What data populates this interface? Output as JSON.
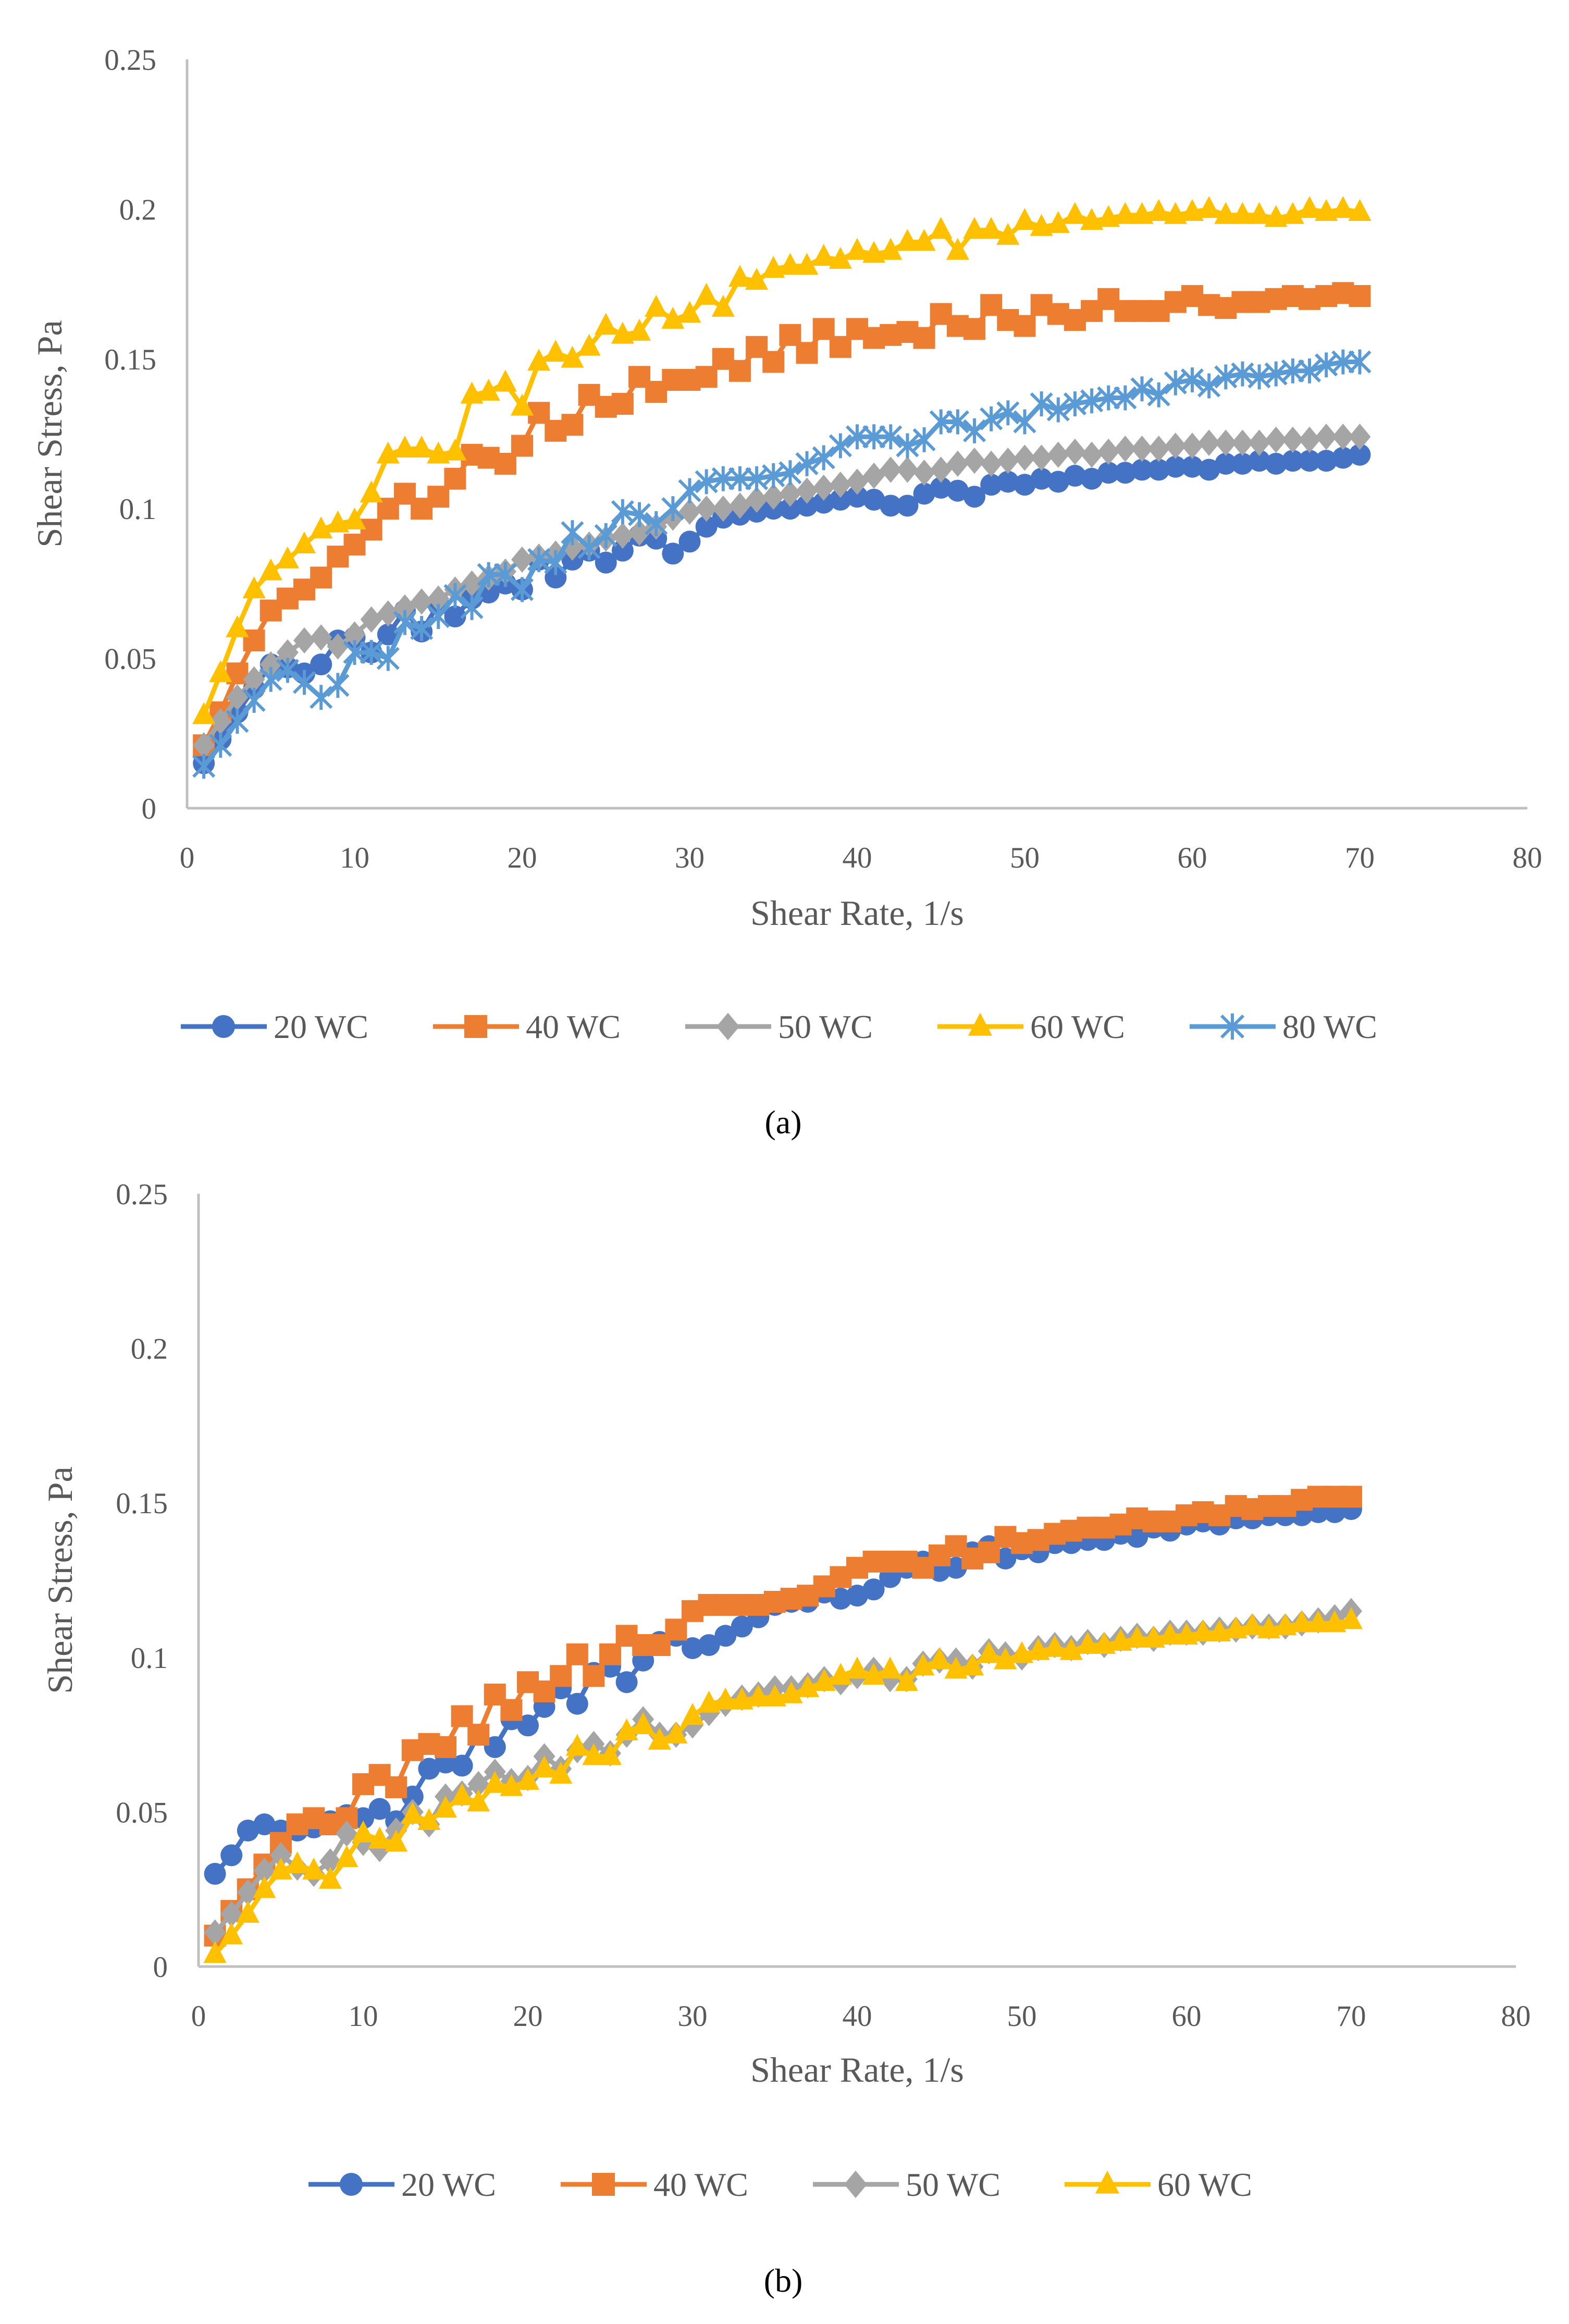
{
  "chart_data": [
    {
      "type": "line",
      "caption": "(a)",
      "xlabel": "Shear Rate, 1/s",
      "ylabel": "Shear Stress, Pa",
      "xlim": [
        0,
        80
      ],
      "ylim": [
        0,
        0.25
      ],
      "xticks": [
        "0",
        "10",
        "20",
        "30",
        "40",
        "50",
        "60",
        "70",
        "80"
      ],
      "yticks": [
        "0",
        "0.05",
        "0.1",
        "0.15",
        "0.2",
        "0.25"
      ],
      "grid": false,
      "legend_position": "bottom",
      "x": [
        1,
        2,
        3,
        4,
        5,
        6,
        7,
        8,
        9,
        10,
        11,
        12,
        13,
        14,
        15,
        16,
        17,
        18,
        19,
        20,
        21,
        22,
        23,
        24,
        25,
        26,
        27,
        28,
        29,
        30,
        31,
        32,
        33,
        34,
        35,
        36,
        37,
        38,
        39,
        40,
        41,
        42,
        43,
        44,
        45,
        46,
        47,
        48,
        49,
        50,
        51,
        52,
        53,
        54,
        55,
        56,
        57,
        58,
        59,
        60,
        61,
        62,
        63,
        64,
        65,
        66,
        67,
        68,
        69,
        70
      ],
      "series": [
        {
          "name": "20 WC",
          "color": "#4472C4",
          "marker": "circle",
          "values": [
            0.015,
            0.023,
            0.032,
            0.04,
            0.048,
            0.047,
            0.045,
            0.048,
            0.056,
            0.057,
            0.052,
            0.058,
            0.066,
            0.059,
            0.068,
            0.064,
            0.07,
            0.072,
            0.075,
            0.073,
            0.083,
            0.077,
            0.083,
            0.086,
            0.082,
            0.086,
            0.091,
            0.09,
            0.085,
            0.089,
            0.094,
            0.097,
            0.098,
            0.099,
            0.1,
            0.1,
            0.101,
            0.102,
            0.103,
            0.104,
            0.103,
            0.101,
            0.101,
            0.105,
            0.107,
            0.106,
            0.104,
            0.108,
            0.109,
            0.108,
            0.11,
            0.109,
            0.111,
            0.11,
            0.112,
            0.112,
            0.113,
            0.113,
            0.114,
            0.114,
            0.113,
            0.115,
            0.115,
            0.116,
            0.115,
            0.116,
            0.116,
            0.116,
            0.117,
            0.118
          ]
        },
        {
          "name": "40 WC",
          "color": "#ED7D31",
          "marker": "square",
          "values": [
            0.021,
            0.032,
            0.045,
            0.056,
            0.066,
            0.07,
            0.073,
            0.077,
            0.084,
            0.088,
            0.093,
            0.1,
            0.105,
            0.1,
            0.104,
            0.11,
            0.118,
            0.117,
            0.115,
            0.121,
            0.132,
            0.126,
            0.128,
            0.138,
            0.134,
            0.135,
            0.144,
            0.139,
            0.143,
            0.143,
            0.144,
            0.15,
            0.146,
            0.154,
            0.149,
            0.158,
            0.152,
            0.16,
            0.154,
            0.16,
            0.157,
            0.158,
            0.159,
            0.157,
            0.165,
            0.161,
            0.16,
            0.168,
            0.163,
            0.161,
            0.168,
            0.165,
            0.163,
            0.166,
            0.17,
            0.166,
            0.166,
            0.166,
            0.169,
            0.171,
            0.168,
            0.167,
            0.169,
            0.169,
            0.17,
            0.171,
            0.17,
            0.171,
            0.172,
            0.171
          ]
        },
        {
          "name": "50 WC",
          "color": "#A5A5A5",
          "marker": "diamond",
          "values": [
            0.021,
            0.029,
            0.037,
            0.043,
            0.048,
            0.052,
            0.056,
            0.057,
            0.054,
            0.058,
            0.063,
            0.065,
            0.067,
            0.069,
            0.07,
            0.073,
            0.075,
            0.077,
            0.079,
            0.083,
            0.084,
            0.085,
            0.087,
            0.088,
            0.09,
            0.091,
            0.092,
            0.094,
            0.097,
            0.099,
            0.1,
            0.1,
            0.101,
            0.103,
            0.104,
            0.105,
            0.106,
            0.107,
            0.108,
            0.109,
            0.111,
            0.113,
            0.113,
            0.112,
            0.113,
            0.115,
            0.116,
            0.115,
            0.116,
            0.117,
            0.117,
            0.118,
            0.119,
            0.118,
            0.119,
            0.12,
            0.12,
            0.12,
            0.121,
            0.121,
            0.122,
            0.122,
            0.122,
            0.122,
            0.123,
            0.123,
            0.123,
            0.124,
            0.124,
            0.124
          ]
        },
        {
          "name": "60 WC",
          "color": "#FFC000",
          "marker": "triangle",
          "values": [
            0.031,
            0.045,
            0.06,
            0.073,
            0.079,
            0.083,
            0.088,
            0.093,
            0.095,
            0.096,
            0.105,
            0.118,
            0.12,
            0.12,
            0.118,
            0.119,
            0.138,
            0.139,
            0.142,
            0.134,
            0.149,
            0.152,
            0.15,
            0.154,
            0.161,
            0.158,
            0.159,
            0.167,
            0.163,
            0.165,
            0.171,
            0.167,
            0.177,
            0.176,
            0.18,
            0.181,
            0.181,
            0.184,
            0.183,
            0.186,
            0.185,
            0.186,
            0.189,
            0.189,
            0.193,
            0.186,
            0.193,
            0.193,
            0.191,
            0.196,
            0.194,
            0.195,
            0.198,
            0.196,
            0.197,
            0.198,
            0.198,
            0.199,
            0.198,
            0.199,
            0.2,
            0.198,
            0.198,
            0.198,
            0.197,
            0.198,
            0.2,
            0.199,
            0.2,
            0.199
          ]
        },
        {
          "name": "80 WC",
          "color": "#5B9BD5",
          "marker": "asterisk",
          "values": [
            0.014,
            0.021,
            0.029,
            0.036,
            0.043,
            0.046,
            0.042,
            0.037,
            0.041,
            0.052,
            0.052,
            0.05,
            0.062,
            0.06,
            0.064,
            0.071,
            0.067,
            0.078,
            0.078,
            0.073,
            0.083,
            0.082,
            0.092,
            0.087,
            0.091,
            0.099,
            0.098,
            0.095,
            0.1,
            0.106,
            0.109,
            0.11,
            0.11,
            0.11,
            0.111,
            0.112,
            0.115,
            0.117,
            0.121,
            0.124,
            0.124,
            0.124,
            0.121,
            0.123,
            0.129,
            0.129,
            0.126,
            0.13,
            0.132,
            0.129,
            0.135,
            0.133,
            0.135,
            0.136,
            0.137,
            0.137,
            0.14,
            0.138,
            0.142,
            0.143,
            0.141,
            0.144,
            0.145,
            0.144,
            0.145,
            0.146,
            0.146,
            0.148,
            0.149,
            0.149
          ]
        }
      ]
    },
    {
      "type": "line",
      "caption": "(b)",
      "xlabel": "Shear Rate, 1/s",
      "ylabel": "Shear Stress, Pa",
      "xlim": [
        0,
        80
      ],
      "ylim": [
        0,
        0.25
      ],
      "xticks": [
        "0",
        "10",
        "20",
        "30",
        "40",
        "50",
        "60",
        "70",
        "80"
      ],
      "yticks": [
        "0",
        "0.05",
        "0.1",
        "0.15",
        "0.2",
        "0.25"
      ],
      "grid": false,
      "legend_position": "bottom",
      "x": [
        1,
        2,
        3,
        4,
        5,
        6,
        7,
        8,
        9,
        10,
        11,
        12,
        13,
        14,
        15,
        16,
        17,
        18,
        19,
        20,
        21,
        22,
        23,
        24,
        25,
        26,
        27,
        28,
        29,
        30,
        31,
        32,
        33,
        34,
        35,
        36,
        37,
        38,
        39,
        40,
        41,
        42,
        43,
        44,
        45,
        46,
        47,
        48,
        49,
        50,
        51,
        52,
        53,
        54,
        55,
        56,
        57,
        58,
        59,
        60,
        61,
        62,
        63,
        64,
        65,
        66,
        67,
        68,
        69,
        70
      ],
      "series": [
        {
          "name": "20 WC",
          "color": "#4472C4",
          "marker": "circle",
          "values": [
            0.03,
            0.036,
            0.044,
            0.046,
            0.044,
            0.044,
            0.045,
            0.047,
            0.049,
            0.048,
            0.051,
            0.047,
            0.055,
            0.064,
            0.066,
            0.065,
            0.075,
            0.071,
            0.08,
            0.078,
            0.084,
            0.09,
            0.085,
            0.095,
            0.097,
            0.092,
            0.099,
            0.105,
            0.107,
            0.103,
            0.104,
            0.107,
            0.11,
            0.113,
            0.117,
            0.118,
            0.118,
            0.121,
            0.119,
            0.12,
            0.122,
            0.126,
            0.129,
            0.131,
            0.128,
            0.129,
            0.134,
            0.136,
            0.132,
            0.135,
            0.134,
            0.137,
            0.137,
            0.138,
            0.138,
            0.14,
            0.139,
            0.142,
            0.141,
            0.143,
            0.144,
            0.143,
            0.145,
            0.145,
            0.146,
            0.146,
            0.146,
            0.147,
            0.147,
            0.148
          ]
        },
        {
          "name": "40 WC",
          "color": "#ED7D31",
          "marker": "square",
          "values": [
            0.01,
            0.018,
            0.025,
            0.033,
            0.04,
            0.046,
            0.048,
            0.046,
            0.048,
            0.059,
            0.062,
            0.058,
            0.07,
            0.072,
            0.071,
            0.081,
            0.075,
            0.088,
            0.083,
            0.092,
            0.089,
            0.094,
            0.101,
            0.094,
            0.101,
            0.107,
            0.104,
            0.104,
            0.109,
            0.115,
            0.117,
            0.117,
            0.117,
            0.117,
            0.118,
            0.119,
            0.12,
            0.123,
            0.126,
            0.129,
            0.131,
            0.131,
            0.131,
            0.129,
            0.133,
            0.136,
            0.132,
            0.134,
            0.139,
            0.137,
            0.138,
            0.14,
            0.141,
            0.142,
            0.142,
            0.143,
            0.145,
            0.144,
            0.144,
            0.146,
            0.147,
            0.146,
            0.149,
            0.148,
            0.149,
            0.149,
            0.151,
            0.152,
            0.152,
            0.152
          ]
        },
        {
          "name": "50 WC",
          "color": "#A5A5A5",
          "marker": "diamond",
          "values": [
            0.011,
            0.017,
            0.024,
            0.031,
            0.036,
            0.032,
            0.03,
            0.034,
            0.043,
            0.04,
            0.038,
            0.044,
            0.05,
            0.046,
            0.055,
            0.056,
            0.059,
            0.063,
            0.06,
            0.061,
            0.068,
            0.064,
            0.07,
            0.072,
            0.069,
            0.075,
            0.08,
            0.075,
            0.075,
            0.078,
            0.082,
            0.085,
            0.087,
            0.088,
            0.09,
            0.09,
            0.091,
            0.093,
            0.092,
            0.094,
            0.096,
            0.093,
            0.093,
            0.098,
            0.099,
            0.099,
            0.097,
            0.102,
            0.101,
            0.1,
            0.103,
            0.104,
            0.103,
            0.105,
            0.104,
            0.106,
            0.107,
            0.106,
            0.108,
            0.108,
            0.108,
            0.109,
            0.109,
            0.11,
            0.11,
            0.11,
            0.111,
            0.112,
            0.113,
            0.115
          ]
        },
        {
          "name": "60 WC",
          "color": "#FFC000",
          "marker": "triangle",
          "values": [
            0.004,
            0.01,
            0.017,
            0.025,
            0.031,
            0.033,
            0.031,
            0.028,
            0.035,
            0.043,
            0.041,
            0.04,
            0.049,
            0.047,
            0.051,
            0.055,
            0.053,
            0.059,
            0.058,
            0.06,
            0.064,
            0.062,
            0.071,
            0.068,
            0.068,
            0.076,
            0.078,
            0.073,
            0.075,
            0.081,
            0.085,
            0.086,
            0.086,
            0.087,
            0.087,
            0.088,
            0.09,
            0.092,
            0.094,
            0.096,
            0.094,
            0.096,
            0.092,
            0.097,
            0.099,
            0.096,
            0.097,
            0.101,
            0.099,
            0.101,
            0.102,
            0.103,
            0.102,
            0.104,
            0.104,
            0.105,
            0.106,
            0.106,
            0.107,
            0.107,
            0.108,
            0.108,
            0.109,
            0.11,
            0.109,
            0.11,
            0.111,
            0.111,
            0.111,
            0.112
          ]
        }
      ]
    }
  ]
}
